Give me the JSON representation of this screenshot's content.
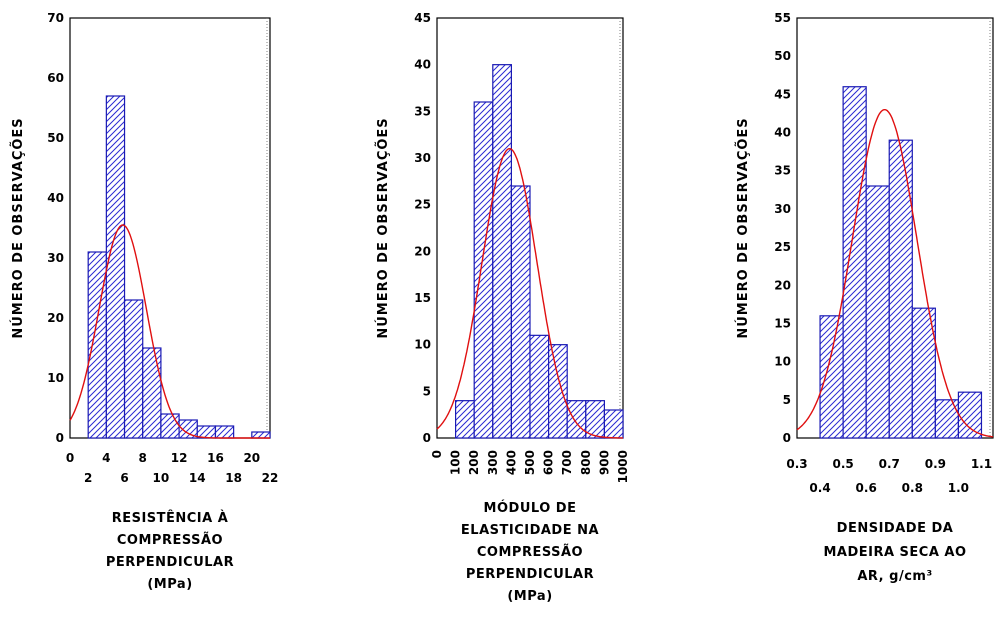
{
  "chart_data": [
    {
      "type": "bar",
      "ylabel": "NÚMERO DE OBSERVAÇÕES",
      "xlabel_lines": [
        "RESISTÊNCIA À",
        "COMPRESSÃO",
        "PERPENDICULAR",
        "(MPa)"
      ],
      "ylim": [
        0,
        70
      ],
      "yticks": [
        "0",
        "10",
        "20",
        "30",
        "40",
        "50",
        "60",
        "70"
      ],
      "xlim": [
        0,
        22
      ],
      "xticks_row1": [
        "0",
        "4",
        "8",
        "12",
        "16",
        "20"
      ],
      "xticks_row2": [
        "2",
        "6",
        "10",
        "14",
        "18",
        "22"
      ],
      "bins": [
        [
          2,
          4
        ],
        [
          4,
          6
        ],
        [
          6,
          8
        ],
        [
          8,
          10
        ],
        [
          10,
          12
        ],
        [
          12,
          14
        ],
        [
          14,
          16
        ],
        [
          16,
          18
        ],
        [
          18,
          20
        ],
        [
          20,
          22
        ]
      ],
      "values": [
        31,
        57,
        23,
        15,
        4,
        3,
        2,
        2,
        0,
        1
      ],
      "curve": {
        "mean": 5.8,
        "sd": 2.6,
        "peak": 35.5
      },
      "grid": false
    },
    {
      "type": "bar",
      "ylabel": "NÚMERO DE OBSERVAÇÕES",
      "xlabel_lines": [
        "MÓDULO DE",
        "ELASTICIDADE NA",
        "COMPRESSÃO",
        "PERPENDICULAR",
        "(MPa)"
      ],
      "ylim": [
        0,
        45
      ],
      "yticks": [
        "0",
        "5",
        "10",
        "15",
        "20",
        "25",
        "30",
        "35",
        "40",
        "45"
      ],
      "xlim": [
        0,
        1000
      ],
      "xticks": [
        "0",
        "100",
        "200",
        "300",
        "400",
        "500",
        "600",
        "700",
        "800",
        "900",
        "1000"
      ],
      "bins": [
        [
          100,
          200
        ],
        [
          200,
          300
        ],
        [
          300,
          400
        ],
        [
          400,
          500
        ],
        [
          500,
          600
        ],
        [
          600,
          700
        ],
        [
          700,
          800
        ],
        [
          800,
          900
        ],
        [
          900,
          1000
        ]
      ],
      "values": [
        4,
        36,
        40,
        27,
        11,
        10,
        4,
        4,
        3
      ],
      "curve": {
        "mean": 390,
        "sd": 148,
        "peak": 31
      },
      "grid": false
    },
    {
      "type": "bar",
      "ylabel": "NÚMERO DE OBSERVAÇÕES",
      "xlabel_lines": [
        "DENSIDADE DA",
        "MADEIRA SECA AO",
        "AR, g/cm³"
      ],
      "ylim": [
        0,
        55
      ],
      "yticks": [
        "0",
        "5",
        "10",
        "15",
        "20",
        "25",
        "30",
        "35",
        "40",
        "45",
        "50",
        "55"
      ],
      "xlim": [
        0.3,
        1.15
      ],
      "xticks_row1": [
        "0.3",
        "0.5",
        "0.7",
        "0.9",
        "1.1"
      ],
      "xticks_row2": [
        "0.4",
        "0.6",
        "0.8",
        "1.0"
      ],
      "bins": [
        [
          0.4,
          0.5
        ],
        [
          0.5,
          0.6
        ],
        [
          0.6,
          0.7
        ],
        [
          0.7,
          0.8
        ],
        [
          0.8,
          0.9
        ],
        [
          0.9,
          1.0
        ],
        [
          1.0,
          1.1
        ]
      ],
      "values": [
        16,
        46,
        33,
        39,
        17,
        5,
        6
      ],
      "curve": {
        "mean": 0.68,
        "sd": 0.14,
        "peak": 43
      },
      "grid": false
    }
  ],
  "colors": {
    "bar_stroke": "#1a1ab4",
    "hatch": "#2a2ad2",
    "curve": "#e01010",
    "frame": "#000000",
    "grid": "#808080"
  }
}
